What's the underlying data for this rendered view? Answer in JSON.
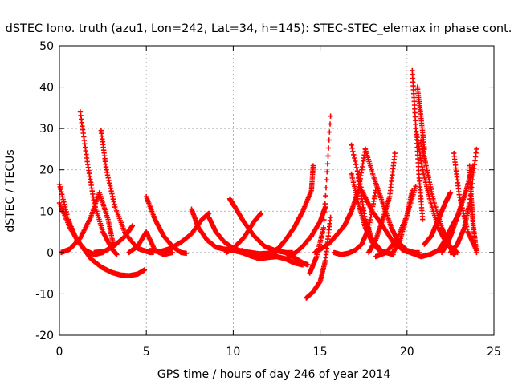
{
  "chart_data": {
    "type": "scatter",
    "title": "dSTEC Iono. truth (azu1, Lon=242, Lat=34, h=145): STEC-STEC_elemax in phase cont.",
    "xlabel": "GPS time / hours of day 246 of year 2014",
    "ylabel": "dSTEC  / TECUs",
    "xlim": [
      0,
      25
    ],
    "ylim": [
      -20,
      50
    ],
    "xticks": [
      0,
      5,
      10,
      15,
      20,
      25
    ],
    "yticks": [
      -20,
      -10,
      0,
      10,
      20,
      30,
      40,
      50
    ],
    "grid": true,
    "marker": "+",
    "series_color": "#ff0000",
    "series": [
      {
        "x": [
          0.0,
          0.5,
          1.0,
          1.5,
          2.0,
          2.5
        ],
        "values": [
          16.5,
          8,
          3,
          0.5,
          -0.5,
          0
        ]
      },
      {
        "x": [
          0.0,
          0.6,
          1.2,
          1.8,
          2.4,
          3.0,
          3.5,
          4.0,
          4.5,
          4.9
        ],
        "values": [
          12,
          6,
          2,
          -1.5,
          -3.5,
          -4.8,
          -5.4,
          -5.6,
          -5.2,
          -4.2
        ]
      },
      {
        "x": [
          0.1,
          0.6,
          1.2,
          1.8,
          2.3,
          2.8,
          3.1
        ],
        "values": [
          0,
          0.8,
          3.5,
          8.5,
          14.5,
          8,
          2
        ]
      },
      {
        "x": [
          1.2,
          1.6,
          2.0,
          2.5,
          3.0,
          3.3
        ],
        "values": [
          34,
          22,
          12,
          5,
          1,
          -0.5
        ]
      },
      {
        "x": [
          2.4,
          2.7,
          3.2,
          3.8,
          4.5,
          5.2,
          5.4
        ],
        "values": [
          29.5,
          20,
          11,
          4.5,
          1,
          0,
          0
        ]
      },
      {
        "x": [
          2.0,
          2.6,
          3.2,
          3.8,
          4.2
        ],
        "values": [
          0,
          0.3,
          1.8,
          4,
          6.5
        ]
      },
      {
        "x": [
          4.0,
          4.5,
          5.0,
          5.5,
          6.0,
          6.5
        ],
        "values": [
          0,
          1.5,
          5,
          0.5,
          -0.5,
          0
        ]
      },
      {
        "x": [
          5.0,
          5.5,
          6.0,
          6.5,
          7.0,
          7.3
        ],
        "values": [
          13.5,
          8,
          4,
          1.5,
          0,
          -0.2
        ]
      },
      {
        "x": [
          5.2,
          5.8,
          6.4,
          7.0,
          7.6,
          8.2,
          8.6
        ],
        "values": [
          0.5,
          0.2,
          1,
          2.5,
          4.5,
          8,
          9.5
        ]
      },
      {
        "x": [
          7.6,
          8.0,
          8.5,
          9.0,
          9.5,
          10.0,
          10.5,
          11.0,
          11.5,
          11.6
        ],
        "values": [
          10.5,
          6,
          3,
          1.3,
          0.8,
          0.5,
          0,
          -0.8,
          -1.2,
          -1.2
        ]
      },
      {
        "x": [
          8.6,
          9.0,
          9.5,
          10.0,
          10.5,
          11.0,
          11.5,
          12.0,
          12.5
        ],
        "values": [
          8.5,
          5,
          2.5,
          1,
          0.3,
          0,
          -0.3,
          -0.2,
          0
        ]
      },
      {
        "x": [
          9.8,
          10.1,
          10.6,
          11.2,
          11.8,
          12.4,
          13.0,
          13.4
        ],
        "values": [
          13,
          11,
          7.5,
          4,
          1.5,
          0.5,
          0,
          0
        ]
      },
      {
        "x": [
          9.6,
          10.0,
          10.6,
          11.2,
          11.6
        ],
        "values": [
          0,
          1,
          3.5,
          7.5,
          9.5
        ]
      },
      {
        "x": [
          10.5,
          11.0,
          11.5,
          12.0,
          12.5,
          13.0,
          13.5,
          14.0
        ],
        "values": [
          0.5,
          -0.8,
          -1.5,
          -1.2,
          -1,
          -1.5,
          -2.5,
          -3
        ]
      },
      {
        "x": [
          12.2,
          12.6,
          13.0,
          13.5,
          14.0,
          14.5,
          14.6
        ],
        "values": [
          0,
          1,
          3,
          6,
          10,
          15,
          21
        ]
      },
      {
        "x": [
          13.2,
          13.6,
          14.0,
          14.5,
          15.0,
          15.3
        ],
        "values": [
          -1,
          0,
          1.5,
          4,
          7.5,
          11
        ]
      },
      {
        "x": [
          13.0,
          13.5,
          14.0,
          14.3
        ],
        "values": [
          0,
          -1.2,
          -2.5,
          -3
        ]
      },
      {
        "x": [
          14.2,
          14.6,
          15.0,
          15.3,
          15.6
        ],
        "values": [
          -11,
          -9.5,
          -7,
          -2,
          8.5
        ]
      },
      {
        "x": [
          14.4,
          14.8,
          15.2,
          15.6
        ],
        "values": [
          -5,
          -1,
          6,
          33
        ]
      },
      {
        "x": [
          14.7,
          15.1,
          15.6,
          16.0,
          16.4,
          16.8,
          17.2,
          17.6
        ],
        "values": [
          0,
          1,
          2.5,
          4.5,
          6.5,
          10,
          15,
          25
        ]
      },
      {
        "x": [
          15.8,
          16.2,
          16.6,
          17.0,
          17.4,
          17.8,
          18.2
        ],
        "values": [
          0,
          -0.5,
          -0.2,
          0.5,
          2,
          6,
          15
        ]
      },
      {
        "x": [
          16.8,
          17.2,
          17.6,
          18.0,
          18.4,
          18.8,
          19.2
        ],
        "values": [
          19,
          12,
          6,
          2.5,
          0.5,
          0,
          -0.5
        ]
      },
      {
        "x": [
          17.2,
          17.6,
          18.0,
          18.4,
          18.6
        ],
        "values": [
          18,
          8,
          3,
          1,
          0
        ]
      },
      {
        "x": [
          17.8,
          18.2,
          18.6,
          19.0,
          19.3
        ],
        "values": [
          0,
          3,
          8,
          13.5,
          24
        ]
      },
      {
        "x": [
          16.8,
          17.4,
          18.0,
          18.6,
          19.2,
          19.8,
          20.4
        ],
        "values": [
          26,
          15,
          10,
          6.5,
          2.5,
          0.5,
          -0.3
        ]
      },
      {
        "x": [
          17.6,
          18.1,
          18.6,
          19.1,
          19.5,
          20.0,
          20.4,
          20.7
        ],
        "values": [
          25,
          18,
          12,
          6,
          2.5,
          0.5,
          0,
          0
        ]
      },
      {
        "x": [
          18.2,
          18.8,
          19.4,
          20.0,
          20.5
        ],
        "values": [
          -1,
          0,
          3,
          9,
          16
        ]
      },
      {
        "x": [
          19.2,
          19.6,
          20.0,
          20.3
        ],
        "values": [
          0,
          3,
          9,
          15
        ]
      },
      {
        "x": [
          20.3,
          20.5,
          20.7,
          20.9
        ],
        "values": [
          44,
          31,
          18,
          8
        ]
      },
      {
        "x": [
          20.6,
          20.8,
          21.0
        ],
        "values": [
          40,
          33,
          25
        ]
      },
      {
        "x": [
          20.8,
          21.1,
          21.5,
          22.0,
          22.4,
          22.7
        ],
        "values": [
          27,
          21,
          13,
          6,
          2,
          -0.5
        ]
      },
      {
        "x": [
          20.5,
          20.9,
          21.3,
          21.8,
          22.3,
          22.9
        ],
        "values": [
          30,
          20,
          13,
          6,
          2,
          0
        ]
      },
      {
        "x": [
          20.2,
          20.8,
          21.3,
          21.8,
          22.2,
          22.6,
          23.0
        ],
        "values": [
          0,
          -1,
          -0.5,
          0.5,
          3,
          6.5,
          9.5
        ]
      },
      {
        "x": [
          21.0,
          21.4,
          21.8,
          22.2,
          22.5
        ],
        "values": [
          2,
          4,
          8,
          12,
          14.5
        ]
      },
      {
        "x": [
          22.7,
          23.0,
          23.5,
          24.0
        ],
        "values": [
          24,
          14,
          5,
          0.5
        ]
      },
      {
        "x": [
          22.5,
          22.9,
          23.3,
          23.6,
          24.0
        ],
        "values": [
          0,
          2,
          6,
          12,
          25
        ]
      },
      {
        "x": [
          22.0,
          22.3,
          22.6,
          23.0,
          23.4,
          23.8
        ],
        "values": [
          0,
          2,
          5,
          10,
          15,
          21
        ]
      },
      {
        "x": [
          23.6,
          23.7,
          23.8,
          24.0
        ],
        "values": [
          21,
          13,
          7,
          0
        ]
      }
    ]
  }
}
